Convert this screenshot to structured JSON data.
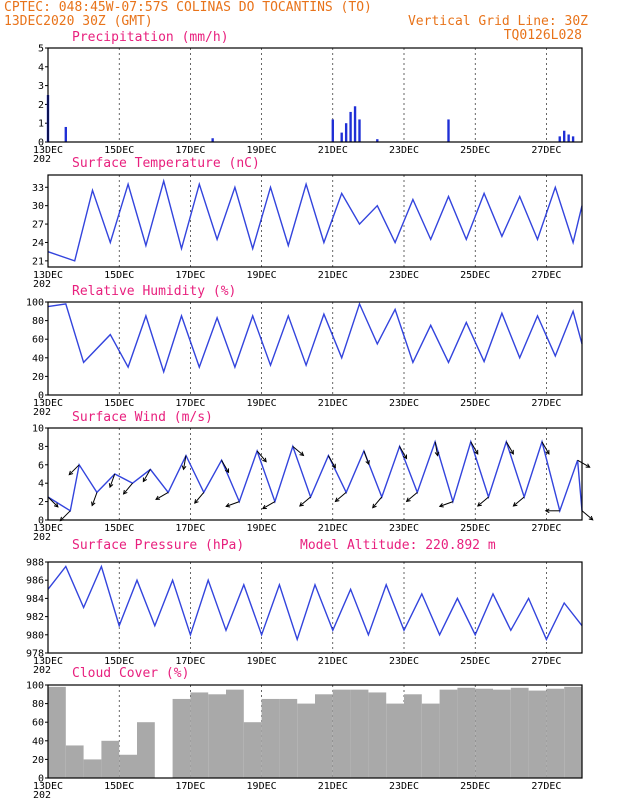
{
  "header": {
    "line1": "CPTEC:   048:45W-07:57S   COLINAS DO TOCANTINS (TO)",
    "line2_left": "13DEC2020 30Z (GMT)",
    "line2_right": "Vertical Grid Line: 30Z",
    "line3_right": "TQ0126L028"
  },
  "colors": {
    "header": "#e8731a",
    "panel_title": "#e8207e",
    "line": "#3344dd",
    "bar": "#1f2fd6",
    "cloud": "#a9a9a9",
    "arrow": "#000000"
  },
  "x_axis": {
    "start_date": "13DEC",
    "end_date": "28DEC",
    "tick_labels": [
      "13DEC",
      "15DEC",
      "17DEC",
      "19DEC",
      "21DEC",
      "23DEC",
      "25DEC",
      "27DEC"
    ],
    "year_label": "202"
  },
  "chart_data": [
    {
      "id": "precip",
      "type": "bar",
      "title": "Precipitation (mm/h)",
      "ylim": [
        0,
        5
      ],
      "yticks": [
        "0",
        "1",
        "2",
        "3",
        "4",
        "5"
      ],
      "x": [
        "13DEC 00Z",
        "13DEC 12Z",
        "17DEC 15Z",
        "21DEC 00Z",
        "21DEC 06Z",
        "21DEC 09Z",
        "21DEC 12Z",
        "21DEC 15Z",
        "21DEC 18Z",
        "22DEC 06Z",
        "24DEC 06Z",
        "27DEC 09Z",
        "27DEC 12Z",
        "27DEC 15Z",
        "27DEC 18Z"
      ],
      "values": [
        2.5,
        0.8,
        0.2,
        1.2,
        0.5,
        1.0,
        1.6,
        1.9,
        1.2,
        0.15,
        1.2,
        0.3,
        0.6,
        0.4,
        0.3
      ]
    },
    {
      "id": "temperature",
      "type": "line",
      "title": "Surface Temperature (nC)",
      "ylim": [
        20,
        35
      ],
      "yticks": [
        "21",
        "24",
        "27",
        "30",
        "33"
      ],
      "x": [
        "13DEC 00Z",
        "13DEC 18Z",
        "14DEC 06Z",
        "14DEC 18Z",
        "15DEC 06Z",
        "15DEC 18Z",
        "16DEC 06Z",
        "16DEC 18Z",
        "17DEC 06Z",
        "17DEC 18Z",
        "18DEC 06Z",
        "18DEC 18Z",
        "19DEC 06Z",
        "19DEC 18Z",
        "20DEC 06Z",
        "20DEC 18Z",
        "21DEC 06Z",
        "21DEC 18Z",
        "22DEC 06Z",
        "22DEC 18Z",
        "23DEC 06Z",
        "23DEC 18Z",
        "24DEC 06Z",
        "24DEC 18Z",
        "25DEC 06Z",
        "25DEC 18Z",
        "26DEC 06Z",
        "26DEC 18Z",
        "27DEC 06Z",
        "27DEC 18Z",
        "28DEC 00Z"
      ],
      "values": [
        22.5,
        21.0,
        32.5,
        24.0,
        33.5,
        23.5,
        34.0,
        23.0,
        33.5,
        24.5,
        33.0,
        23.0,
        33.0,
        23.5,
        33.5,
        24.0,
        32.0,
        27.0,
        30.0,
        24.0,
        31.0,
        24.5,
        31.5,
        24.5,
        32.0,
        25.0,
        31.5,
        24.5,
        33.0,
        24.0,
        30.0
      ]
    },
    {
      "id": "humidity",
      "type": "line",
      "title": "Relative Humidity (%)",
      "ylim": [
        0,
        100
      ],
      "yticks": [
        "0",
        "20",
        "40",
        "60",
        "80",
        "100"
      ],
      "x": [
        "13DEC 00Z",
        "13DEC 12Z",
        "14DEC 00Z",
        "14DEC 18Z",
        "15DEC 06Z",
        "15DEC 18Z",
        "16DEC 06Z",
        "16DEC 18Z",
        "17DEC 06Z",
        "17DEC 18Z",
        "18DEC 06Z",
        "18DEC 18Z",
        "19DEC 06Z",
        "19DEC 18Z",
        "20DEC 06Z",
        "20DEC 18Z",
        "21DEC 06Z",
        "21DEC 18Z",
        "22DEC 06Z",
        "22DEC 18Z",
        "23DEC 06Z",
        "23DEC 18Z",
        "24DEC 06Z",
        "24DEC 18Z",
        "25DEC 06Z",
        "25DEC 18Z",
        "26DEC 06Z",
        "26DEC 18Z",
        "27DEC 06Z",
        "27DEC 18Z",
        "28DEC 00Z"
      ],
      "values": [
        95,
        98,
        35,
        65,
        30,
        85,
        25,
        85,
        30,
        83,
        30,
        85,
        32,
        85,
        32,
        87,
        40,
        98,
        55,
        92,
        35,
        75,
        35,
        78,
        36,
        88,
        40,
        85,
        42,
        90,
        55
      ]
    },
    {
      "id": "wind",
      "type": "line",
      "title": "Surface Wind (m/s)",
      "ylim": [
        0,
        10
      ],
      "yticks": [
        "0",
        "2",
        "4",
        "6",
        "8",
        "10"
      ],
      "x": [
        "13DEC 00Z",
        "13DEC 15Z",
        "13DEC 21Z",
        "14DEC 09Z",
        "14DEC 21Z",
        "15DEC 09Z",
        "15DEC 21Z",
        "16DEC 09Z",
        "16DEC 21Z",
        "17DEC 09Z",
        "17DEC 21Z",
        "18DEC 09Z",
        "18DEC 21Z",
        "19DEC 09Z",
        "19DEC 21Z",
        "20DEC 09Z",
        "20DEC 21Z",
        "21DEC 09Z",
        "21DEC 21Z",
        "22DEC 09Z",
        "22DEC 21Z",
        "23DEC 09Z",
        "23DEC 21Z",
        "24DEC 09Z",
        "24DEC 21Z",
        "25DEC 09Z",
        "25DEC 21Z",
        "26DEC 09Z",
        "26DEC 21Z",
        "27DEC 09Z",
        "27DEC 21Z",
        "28DEC 00Z"
      ],
      "values": [
        2.5,
        1.0,
        6.0,
        3.0,
        5.0,
        4.0,
        5.5,
        3.0,
        7.0,
        3.0,
        6.5,
        2.0,
        7.5,
        2.0,
        8.0,
        2.5,
        7.0,
        3.0,
        7.5,
        2.5,
        8.0,
        3.0,
        8.5,
        2.0,
        8.5,
        2.5,
        8.5,
        2.5,
        8.5,
        1.0,
        6.5,
        1.0
      ],
      "arrows_deg": [
        315,
        225,
        225,
        250,
        250,
        230,
        240,
        210,
        260,
        230,
        300,
        200,
        310,
        210,
        320,
        220,
        300,
        220,
        290,
        230,
        300,
        220,
        280,
        200,
        300,
        220,
        300,
        220,
        300,
        180,
        330,
        320
      ]
    },
    {
      "id": "pressure",
      "type": "line",
      "title": "Surface Pressure (hPa)",
      "annotation": "Model Altitude: 220.892 m",
      "ylim": [
        978,
        988
      ],
      "yticks": [
        "978",
        "980",
        "982",
        "984",
        "986",
        "988"
      ],
      "x": [
        "13DEC 00Z",
        "13DEC 12Z",
        "14DEC 00Z",
        "14DEC 12Z",
        "15DEC 00Z",
        "15DEC 12Z",
        "16DEC 00Z",
        "16DEC 12Z",
        "17DEC 00Z",
        "17DEC 12Z",
        "18DEC 00Z",
        "18DEC 12Z",
        "19DEC 00Z",
        "19DEC 12Z",
        "20DEC 00Z",
        "20DEC 12Z",
        "21DEC 00Z",
        "21DEC 12Z",
        "22DEC 00Z",
        "22DEC 12Z",
        "23DEC 00Z",
        "23DEC 12Z",
        "24DEC 00Z",
        "24DEC 12Z",
        "25DEC 00Z",
        "25DEC 12Z",
        "26DEC 00Z",
        "26DEC 12Z",
        "27DEC 00Z",
        "27DEC 12Z",
        "28DEC 00Z"
      ],
      "values": [
        985.0,
        987.5,
        983.0,
        987.5,
        981.0,
        986.0,
        981.0,
        986.0,
        980.0,
        986.0,
        980.5,
        985.5,
        980.0,
        985.5,
        979.5,
        985.5,
        980.5,
        985.0,
        980.0,
        985.5,
        980.5,
        984.5,
        980.0,
        984.0,
        980.0,
        984.5,
        980.5,
        984.0,
        979.5,
        983.5,
        981.0
      ]
    },
    {
      "id": "cloud",
      "type": "bar",
      "title": "Cloud Cover (%)",
      "ylim": [
        0,
        100
      ],
      "yticks": [
        "0",
        "20",
        "40",
        "60",
        "80",
        "100"
      ],
      "x": [
        "13DEC 00Z",
        "13DEC 12Z",
        "14DEC 00Z",
        "14DEC 12Z",
        "15DEC 00Z",
        "15DEC 12Z",
        "16DEC 00Z",
        "16DEC 12Z",
        "17DEC 00Z",
        "17DEC 12Z",
        "18DEC 00Z",
        "18DEC 12Z",
        "19DEC 00Z",
        "19DEC 12Z",
        "20DEC 00Z",
        "20DEC 12Z",
        "21DEC 00Z",
        "21DEC 12Z",
        "22DEC 00Z",
        "22DEC 12Z",
        "23DEC 00Z",
        "23DEC 12Z",
        "24DEC 00Z",
        "24DEC 12Z",
        "25DEC 00Z",
        "25DEC 12Z",
        "26DEC 00Z",
        "26DEC 12Z",
        "27DEC 00Z",
        "27DEC 12Z"
      ],
      "values": [
        98,
        35,
        20,
        40,
        25,
        60,
        0,
        85,
        92,
        90,
        95,
        60,
        85,
        85,
        80,
        90,
        95,
        95,
        92,
        80,
        90,
        80,
        95,
        97,
        96,
        95,
        97,
        94,
        96,
        98
      ]
    }
  ]
}
